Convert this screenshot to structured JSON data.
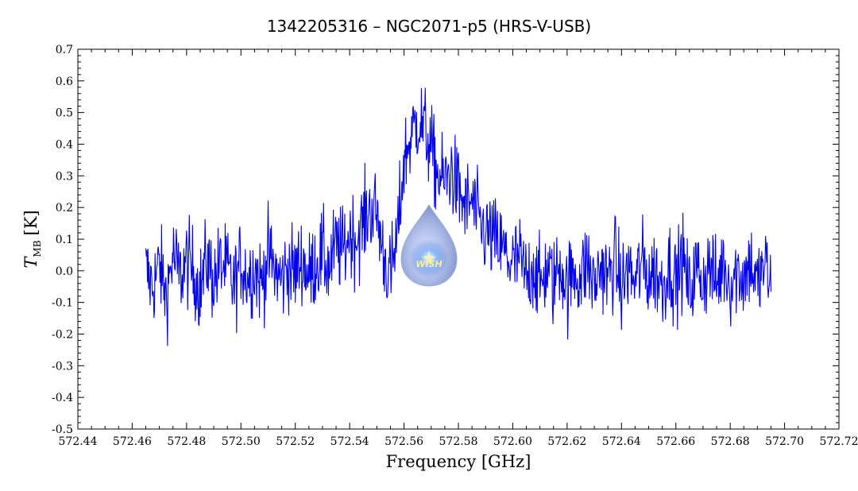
{
  "chart_data": {
    "type": "line",
    "title": "1342205316 – NGC2071-p5 (HRS-V-USB)",
    "xlabel": "Frequency [GHz]",
    "ylabel_main": "T",
    "ylabel_sub": "MB",
    "ylabel_unit": "[K]",
    "xlim": [
      572.44,
      572.72
    ],
    "ylim": [
      -0.5,
      0.7
    ],
    "x_ticks": [
      "572.44",
      "572.46",
      "572.48",
      "572.50",
      "572.52",
      "572.54",
      "572.56",
      "572.58",
      "572.60",
      "572.62",
      "572.64",
      "572.66",
      "572.68",
      "572.70",
      "572.72"
    ],
    "y_ticks": [
      "0.7",
      "0.6",
      "0.5",
      "0.4",
      "0.3",
      "0.2",
      "0.1",
      "0.0",
      "-0.1",
      "-0.2",
      "-0.3",
      "-0.4",
      "-0.5"
    ],
    "grid": false,
    "line_color": "#0000ee",
    "series": [
      {
        "x": [
          572.465,
          572.4675,
          572.47,
          572.4725,
          572.475,
          572.4775,
          572.48,
          572.4825,
          572.485,
          572.4875,
          572.49,
          572.4925,
          572.495,
          572.4975,
          572.5,
          572.5025,
          572.505,
          572.5075,
          572.51,
          572.5125,
          572.515,
          572.5175,
          572.52,
          572.5225,
          572.525,
          572.5275,
          572.53,
          572.5325,
          572.535,
          572.5375,
          572.54,
          572.5425,
          572.545,
          572.5475,
          572.55,
          572.5525,
          572.555,
          572.5575,
          572.56,
          572.5625,
          572.565,
          572.5675,
          572.57,
          572.5725,
          572.575,
          572.5775,
          572.58,
          572.5825,
          572.585,
          572.5875,
          572.59,
          572.5925,
          572.595,
          572.5975,
          572.6,
          572.6025,
          572.605,
          572.6075,
          572.61,
          572.6125,
          572.615,
          572.6175,
          572.62,
          572.6225,
          572.625,
          572.6275,
          572.63,
          572.6325,
          572.635,
          572.6375,
          572.64,
          572.6425,
          572.645,
          572.6475,
          572.65,
          572.6525,
          572.655,
          572.6575,
          572.66,
          572.6625,
          572.665,
          572.6675,
          572.67,
          572.6725,
          572.675,
          572.6775,
          572.68,
          572.6825,
          572.685,
          572.6875,
          572.69,
          572.6925,
          572.695
        ],
        "y": [
          0.0,
          -0.05,
          0.02,
          -0.08,
          0.05,
          -0.02,
          0.03,
          0.0,
          -0.06,
          0.04,
          -0.03,
          0.02,
          0.0,
          -0.05,
          0.03,
          -0.02,
          0.01,
          -0.04,
          0.05,
          0.0,
          -0.03,
          0.02,
          -0.01,
          0.04,
          -0.02,
          0.03,
          0.05,
          0.01,
          0.08,
          0.06,
          0.12,
          0.1,
          0.15,
          0.2,
          0.18,
          0.05,
          -0.02,
          0.1,
          0.35,
          0.42,
          0.48,
          0.45,
          0.38,
          0.3,
          0.28,
          0.32,
          0.25,
          0.2,
          0.22,
          0.15,
          0.12,
          0.1,
          0.08,
          0.05,
          0.02,
          0.04,
          -0.03,
          0.02,
          -0.05,
          0.01,
          -0.04,
          0.03,
          -0.06,
          0.0,
          -0.02,
          0.03,
          -0.05,
          0.02,
          -0.03,
          0.04,
          -0.06,
          0.01,
          -0.04,
          0.03,
          -0.02,
          0.0,
          -0.05,
          0.02,
          -0.03,
          0.04,
          -0.07,
          0.01,
          -0.03,
          0.02,
          -0.05,
          0.03,
          -0.04,
          0.0,
          -0.02,
          0.03,
          -0.05,
          0.02,
          -0.04
        ]
      }
    ]
  }
}
